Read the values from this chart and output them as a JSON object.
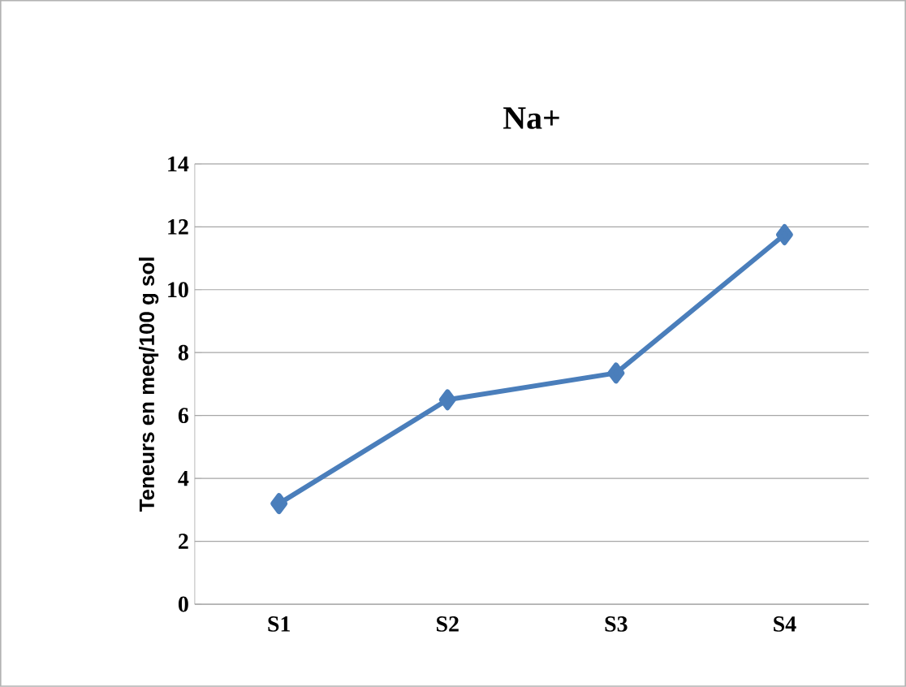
{
  "chart_data": {
    "type": "line",
    "title": "Na+",
    "ylabel": "Teneurs en meq/100 g sol",
    "categories": [
      "S1",
      "S2",
      "S3",
      "S4"
    ],
    "series": [
      {
        "color": "#4a7ebb",
        "values": [
          3.2,
          6.5,
          7.35,
          11.75
        ]
      }
    ],
    "ylim": [
      0,
      14
    ],
    "yticks": [
      0,
      2,
      4,
      6,
      8,
      10,
      12,
      14
    ],
    "grid": "y",
    "marker": "diamond",
    "line_style": "solid",
    "legend": false
  }
}
